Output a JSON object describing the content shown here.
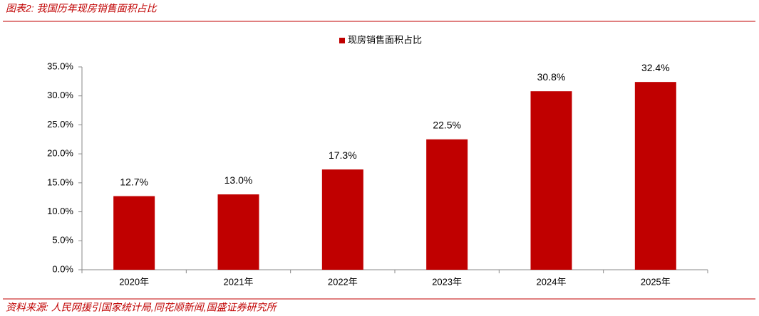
{
  "chart_data": {
    "type": "bar",
    "title": "图表2:  我国历年现房销售面积占比",
    "source": "资料来源:  人民网援引国家统计局,同花顺新闻,国盛证券研究所",
    "categories": [
      "2020年",
      "2021年",
      "2022年",
      "2023年",
      "2024年",
      "2025年"
    ],
    "series": [
      {
        "name": "现房销售面积占比",
        "color": "#c00000",
        "values": [
          12.7,
          13.0,
          17.3,
          22.5,
          30.8,
          32.4
        ],
        "value_labels": [
          "12.7%",
          "13.0%",
          "17.3%",
          "22.5%",
          "30.8%",
          "32.4%"
        ]
      }
    ],
    "ylim": [
      0,
      35
    ],
    "yticks": [
      {
        "value": 0,
        "label": "0.0%"
      },
      {
        "value": 5,
        "label": "5.0%"
      },
      {
        "value": 10,
        "label": "10.0%"
      },
      {
        "value": 15,
        "label": "15.0%"
      },
      {
        "value": 20,
        "label": "20.0%"
      },
      {
        "value": 25,
        "label": "25.0%"
      },
      {
        "value": 30,
        "label": "30.0%"
      },
      {
        "value": 35,
        "label": "35.0%"
      }
    ],
    "grid": false,
    "legend": "top"
  }
}
